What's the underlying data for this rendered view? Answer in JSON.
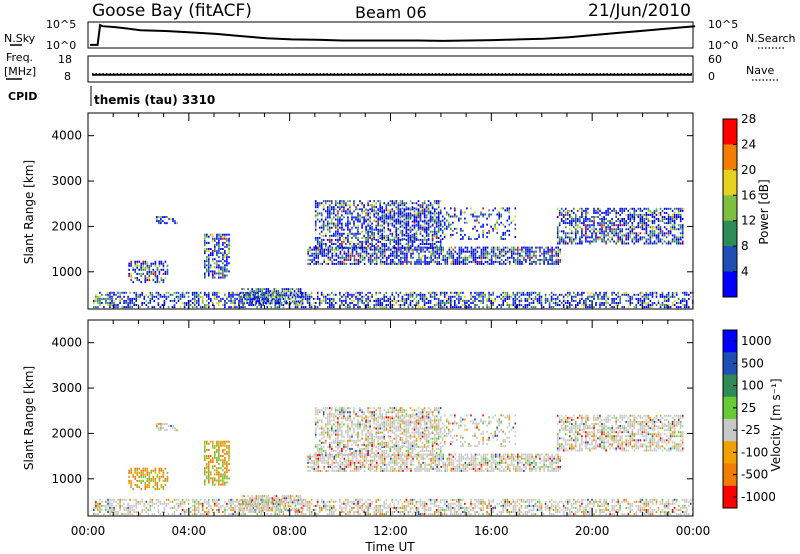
{
  "header": {
    "station": "Goose Bay (fitACF)",
    "beam": "Beam 06",
    "date": "21/Jun/2010"
  },
  "colors": {
    "axis": "#000000",
    "background": "#ffffff",
    "ground_scatter": "#c8c8c8"
  },
  "chart_data": [
    {
      "type": "line",
      "title": "",
      "left_label": "N.Sky",
      "right_label": "N.Search",
      "left_ticks": [
        "10^5",
        "10^0"
      ],
      "right_ticks": [
        "10^5",
        "10^0"
      ],
      "x": [
        0.0,
        0.3,
        0.4,
        0.5,
        1.0,
        2.0,
        3.0,
        4.0,
        5.0,
        6.0,
        7.0,
        8.0,
        9.0,
        10.0,
        11.0,
        12.0,
        13.0,
        14.0,
        15.0,
        16.0,
        17.0,
        18.0,
        19.0,
        20.0,
        21.0,
        22.0,
        23.0,
        24.0
      ],
      "y_fraction": [
        0.05,
        0.05,
        0.95,
        0.9,
        0.86,
        0.72,
        0.68,
        0.62,
        0.55,
        0.45,
        0.35,
        0.3,
        0.28,
        0.25,
        0.25,
        0.25,
        0.25,
        0.23,
        0.25,
        0.27,
        0.3,
        0.33,
        0.4,
        0.5,
        0.6,
        0.7,
        0.8,
        0.9
      ],
      "xlim": [
        0,
        24
      ]
    },
    {
      "type": "line",
      "left_label": "Freq. [MHz]",
      "right_label": "Nave",
      "left_ticks": [
        "18",
        "8"
      ],
      "right_ticks": [
        "60",
        "0"
      ],
      "freq_mhz": 9.8,
      "xlim": [
        0,
        24
      ]
    },
    {
      "type": "heatmap",
      "cpid_label": "CPID",
      "cpid_text": "themis (tau) 3310",
      "ylabel": "Slant Range [km]",
      "yticks": [
        1000,
        2000,
        3000,
        4000
      ],
      "ylim": [
        180,
        4500
      ],
      "xlim": [
        0,
        24
      ],
      "colorbar": {
        "label": "Power [dB]",
        "ticks": [
          "4",
          "8",
          "12",
          "16",
          "20",
          "24",
          "28"
        ],
        "colors": [
          "#0000ff",
          "#1f4fb4",
          "#2e8b57",
          "#7fbf3f",
          "#e6d21e",
          "#f07d00",
          "#ff0000"
        ]
      },
      "bands": [
        {
          "t0": 0.2,
          "t1": 24.0,
          "r0": 200,
          "r1": 550,
          "density": 0.55
        },
        {
          "t0": 6.0,
          "t1": 8.6,
          "r0": 280,
          "r1": 650,
          "density": 0.7
        },
        {
          "t0": 1.6,
          "t1": 3.2,
          "r0": 750,
          "r1": 1250,
          "density": 0.6
        },
        {
          "t0": 4.6,
          "t1": 5.6,
          "r0": 850,
          "r1": 1850,
          "density": 0.6
        },
        {
          "t0": 2.7,
          "t1": 3.6,
          "r0": 2050,
          "r1": 2250,
          "density": 0.5
        },
        {
          "t0": 8.7,
          "t1": 18.8,
          "r0": 1150,
          "r1": 1550,
          "density": 0.7
        },
        {
          "t0": 9.0,
          "t1": 14.0,
          "r0": 1500,
          "r1": 2600,
          "density": 0.55
        },
        {
          "t0": 18.6,
          "t1": 23.6,
          "r0": 1600,
          "r1": 2400,
          "density": 0.6
        },
        {
          "t0": 11.0,
          "t1": 17.0,
          "r0": 1700,
          "r1": 2400,
          "density": 0.25
        }
      ]
    },
    {
      "type": "heatmap",
      "ylabel": "Slant Range [km]",
      "xlabel": "Time UT",
      "yticks": [
        1000,
        2000,
        3000,
        4000
      ],
      "ylim": [
        180,
        4500
      ],
      "xlim": [
        0,
        24
      ],
      "xticks": [
        "00:00",
        "04:00",
        "08:00",
        "12:00",
        "16:00",
        "20:00",
        "00:00"
      ],
      "colorbar": {
        "label": "Velocity [m s⁻¹]",
        "ticks": [
          "1000",
          "500",
          "100",
          "25",
          "-25",
          "-100",
          "-500",
          "-1000"
        ],
        "colors": [
          "#0000ff",
          "#1f4fb4",
          "#2e8b57",
          "#66cc33",
          "#c8c8c8",
          "#f0a000",
          "#f07d00",
          "#ff0000"
        ]
      },
      "bands": [
        {
          "t0": 0.2,
          "t1": 24.0,
          "r0": 200,
          "r1": 550,
          "density": 0.55
        },
        {
          "t0": 6.0,
          "t1": 8.6,
          "r0": 280,
          "r1": 650,
          "density": 0.7
        },
        {
          "t0": 1.6,
          "t1": 3.2,
          "r0": 750,
          "r1": 1250,
          "density": 0.6
        },
        {
          "t0": 4.6,
          "t1": 5.6,
          "r0": 850,
          "r1": 1850,
          "density": 0.6
        },
        {
          "t0": 2.7,
          "t1": 3.6,
          "r0": 2050,
          "r1": 2250,
          "density": 0.5
        },
        {
          "t0": 8.7,
          "t1": 18.8,
          "r0": 1150,
          "r1": 1550,
          "density": 0.7
        },
        {
          "t0": 9.0,
          "t1": 14.0,
          "r0": 1500,
          "r1": 2600,
          "density": 0.55
        },
        {
          "t0": 18.6,
          "t1": 23.6,
          "r0": 1600,
          "r1": 2400,
          "density": 0.6
        },
        {
          "t0": 11.0,
          "t1": 17.0,
          "r0": 1700,
          "r1": 2400,
          "density": 0.25
        }
      ]
    }
  ]
}
